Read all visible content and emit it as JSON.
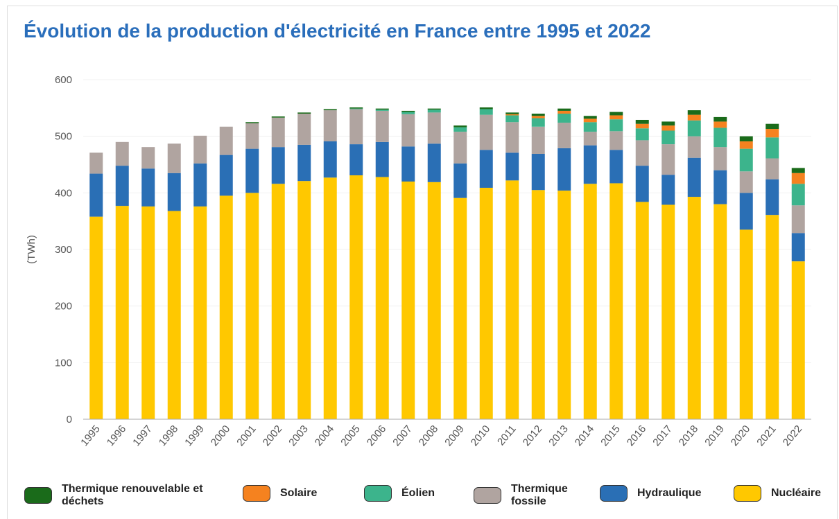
{
  "chart_data": {
    "type": "stacked_bar",
    "title": "Évolution de la production d'électricité en France entre 1995 et 2022",
    "y_label": "(TWh)",
    "categories": [
      "1995",
      "1996",
      "1997",
      "1998",
      "1999",
      "2000",
      "2001",
      "2002",
      "2003",
      "2004",
      "2005",
      "2006",
      "2007",
      "2008",
      "2009",
      "2010",
      "2011",
      "2012",
      "2013",
      "2014",
      "2015",
      "2016",
      "2017",
      "2018",
      "2019",
      "2020",
      "2021",
      "2022"
    ],
    "series": [
      {
        "name": "Nucléaire",
        "color": "#ffc800",
        "values": [
          358,
          377,
          376,
          368,
          376,
          395,
          400,
          416,
          421,
          427,
          431,
          428,
          420,
          419,
          391,
          409,
          422,
          405,
          404,
          416,
          417,
          384,
          379,
          393,
          380,
          335,
          361,
          279
        ]
      },
      {
        "name": "Hydraulique",
        "color": "#2a6fb5",
        "values": [
          76,
          71,
          67,
          67,
          76,
          72,
          78,
          65,
          64,
          64,
          55,
          62,
          62,
          68,
          61,
          67,
          49,
          64,
          75,
          68,
          59,
          64,
          53,
          69,
          60,
          65,
          63,
          50
        ]
      },
      {
        "name": "Thermique fossile",
        "color": "#b0a4a0",
        "values": [
          37,
          42,
          38,
          52,
          49,
          50,
          45,
          52,
          55,
          55,
          62,
          55,
          57,
          55,
          56,
          62,
          54,
          48,
          45,
          24,
          33,
          45,
          54,
          38,
          41,
          38,
          37,
          49
        ]
      },
      {
        "name": "Éolien",
        "color": "#3cb48c",
        "values": [
          0,
          0,
          0,
          0,
          0,
          0,
          0,
          0,
          0,
          0,
          1,
          2,
          4,
          5,
          8,
          10,
          12,
          15,
          16,
          17,
          21,
          21,
          24,
          28,
          34,
          40,
          37,
          38
        ]
      },
      {
        "name": "Solaire",
        "color": "#f5821f",
        "values": [
          0,
          0,
          0,
          0,
          0,
          0,
          0,
          0,
          0,
          0,
          0,
          0,
          0,
          0,
          0,
          0,
          2,
          4,
          5,
          6,
          7,
          8,
          9,
          10,
          11,
          13,
          15,
          19
        ]
      },
      {
        "name": "Thermique renouvelable et déchets",
        "color": "#1a6b1a",
        "values": [
          0,
          0,
          0,
          0,
          0,
          0,
          2,
          2,
          2,
          2,
          2,
          2,
          2,
          2,
          3,
          3,
          3,
          4,
          4,
          5,
          6,
          7,
          7,
          8,
          8,
          9,
          9,
          9
        ]
      }
    ],
    "ylim": [
      0,
      600
    ],
    "yticks": [
      0,
      100,
      200,
      300,
      400,
      500,
      600
    ],
    "grid": true,
    "legend": "bottom"
  }
}
